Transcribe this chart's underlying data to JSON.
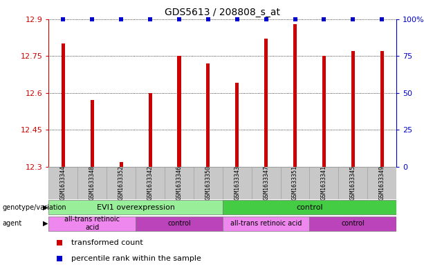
{
  "title": "GDS5613 / 208808_s_at",
  "samples": [
    "GSM1633344",
    "GSM1633348",
    "GSM1633352",
    "GSM1633342",
    "GSM1633346",
    "GSM1633350",
    "GSM1633343",
    "GSM1633347",
    "GSM1633351",
    "GSM1633341",
    "GSM1633345",
    "GSM1633349"
  ],
  "red_values": [
    12.8,
    12.57,
    12.32,
    12.6,
    12.75,
    12.72,
    12.64,
    12.82,
    12.88,
    12.75,
    12.77,
    12.77
  ],
  "blue_percentiles": [
    100,
    100,
    100,
    100,
    100,
    100,
    100,
    100,
    100,
    100,
    100,
    100
  ],
  "ymin": 12.3,
  "ymax": 12.9,
  "yticks_left": [
    12.3,
    12.45,
    12.6,
    12.75,
    12.9
  ],
  "yticks_right": [
    0,
    25,
    50,
    75,
    100
  ],
  "bar_color": "#cc0000",
  "blue_color": "#0000cc",
  "tick_label_bg": "#c8c8c8",
  "genotype_groups": [
    {
      "label": "EVI1 overexpression",
      "start": 0,
      "end": 6,
      "color": "#99ee99"
    },
    {
      "label": "control",
      "start": 6,
      "end": 12,
      "color": "#44cc44"
    }
  ],
  "agent_groups": [
    {
      "label": "all-trans retinoic\nacid",
      "start": 0,
      "end": 3,
      "color": "#ee88ee"
    },
    {
      "label": "control",
      "start": 3,
      "end": 6,
      "color": "#bb44bb"
    },
    {
      "label": "all-trans retinoic acid",
      "start": 6,
      "end": 9,
      "color": "#ee88ee"
    },
    {
      "label": "control",
      "start": 9,
      "end": 12,
      "color": "#bb44bb"
    }
  ],
  "legend_items": [
    {
      "color": "#cc0000",
      "label": "transformed count"
    },
    {
      "color": "#0000cc",
      "label": "percentile rank within the sample"
    }
  ],
  "bar_width": 0.12
}
